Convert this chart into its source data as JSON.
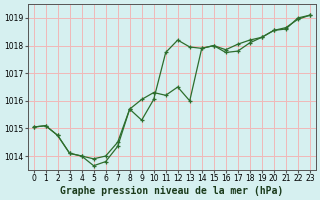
{
  "bg_color": "#d6f0f0",
  "grid_color": "#f0b8b8",
  "line_color": "#2d6e2d",
  "ylim": [
    1013.5,
    1019.5
  ],
  "xlim": [
    -0.5,
    23.5
  ],
  "yticks": [
    1014,
    1015,
    1016,
    1017,
    1018,
    1019
  ],
  "xticks": [
    0,
    1,
    2,
    3,
    4,
    5,
    6,
    7,
    8,
    9,
    10,
    11,
    12,
    13,
    14,
    15,
    16,
    17,
    18,
    19,
    20,
    21,
    22,
    23
  ],
  "series1_x": [
    0,
    1,
    2,
    3,
    4,
    5,
    6,
    7,
    8,
    9,
    10,
    11,
    12,
    13,
    14,
    15,
    16,
    17,
    18,
    19,
    20,
    21,
    22,
    23
  ],
  "series1_y": [
    1015.05,
    1015.1,
    1014.75,
    1014.1,
    1014.0,
    1013.9,
    1014.0,
    1014.5,
    1015.7,
    1016.05,
    1016.3,
    1016.2,
    1016.5,
    1016.0,
    1017.9,
    1018.0,
    1017.85,
    1018.05,
    1018.2,
    1018.3,
    1018.55,
    1018.65,
    1018.95,
    1019.1
  ],
  "series2_x": [
    0,
    1,
    2,
    3,
    4,
    5,
    6,
    7,
    8,
    9,
    10,
    11,
    12,
    13,
    14,
    15,
    16,
    17,
    18,
    19,
    20,
    21,
    22,
    23
  ],
  "series2_y": [
    1015.05,
    1015.1,
    1014.75,
    1014.1,
    1014.0,
    1013.65,
    1013.8,
    1014.35,
    1015.7,
    1015.3,
    1016.05,
    1017.75,
    1018.2,
    1017.95,
    1017.9,
    1018.0,
    1017.75,
    1017.8,
    1018.1,
    1018.3,
    1018.55,
    1018.6,
    1019.0,
    1019.1
  ],
  "tick_fontsize": 5.5,
  "label_text": "Graphe pression niveau de la mer (hPa)",
  "label_fontsize": 7,
  "figw": 3.2,
  "figh": 2.0,
  "dpi": 100
}
